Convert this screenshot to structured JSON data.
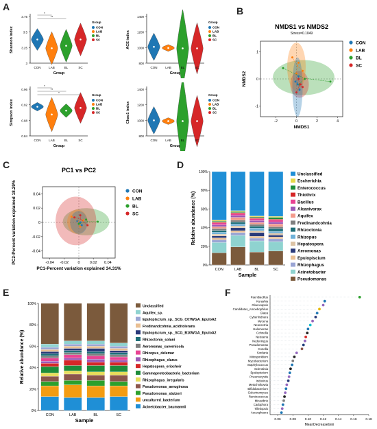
{
  "panel_labels": {
    "A": "A",
    "B": "B",
    "C": "C",
    "D": "D",
    "E": "E",
    "F": "F"
  },
  "colors": {
    "CON": "#1f77b4",
    "LAB": "#ff7f0e",
    "BL": "#2ca02c",
    "SC": "#d62728"
  },
  "chart_data": [
    {
      "id": "A1",
      "type": "violin",
      "ylabel": "Shannon index",
      "xlabel": "Group",
      "categories": [
        "CON",
        "LAB",
        "BL",
        "SC"
      ],
      "yticks": [
        "3",
        "3.25",
        "3.5",
        "3.75"
      ],
      "ylim": [
        3.0,
        3.75
      ],
      "means": [
        3.38,
        3.24,
        3.28,
        3.38
      ],
      "spread": [
        0.08,
        0.12,
        0.12,
        0.12
      ],
      "significance": [
        "*",
        "**"
      ],
      "legend_title": "Group",
      "legend": [
        "CON",
        "LAB",
        "BL",
        "SC"
      ]
    },
    {
      "id": "A2",
      "type": "violin",
      "ylabel": "ACE index",
      "xlabel": "Group",
      "categories": [
        "CON",
        "LAB",
        "BL",
        "SC"
      ],
      "yticks": [
        "800",
        "1000",
        "1200",
        "1400"
      ],
      "ylim": [
        800,
        1400
      ],
      "means": [
        1010,
        995,
        990,
        990
      ],
      "spread": [
        80,
        20,
        230,
        150
      ],
      "legend_title": "Group",
      "legend": [
        "CON",
        "LAB",
        "BL",
        "SC"
      ]
    },
    {
      "id": "A3",
      "type": "violin",
      "ylabel": "Simpson index",
      "xlabel": "Group",
      "categories": [
        "CON",
        "LAB",
        "BL",
        "SC"
      ],
      "yticks": [
        "0.84",
        "0.88",
        "0.92",
        "0.96"
      ],
      "ylim": [
        0.84,
        0.96
      ],
      "means": [
        0.915,
        0.895,
        0.905,
        0.912
      ],
      "spread": [
        0.005,
        0.02,
        0.008,
        0.018
      ],
      "significance": [
        "*",
        "**",
        "*"
      ],
      "legend_title": "Group",
      "legend": [
        "CON",
        "LAB",
        "BL",
        "SC"
      ]
    },
    {
      "id": "A4",
      "type": "violin",
      "ylabel": "Chao1 index",
      "xlabel": "Group",
      "categories": [
        "CON",
        "LAB",
        "BL",
        "SC"
      ],
      "yticks": [
        "800",
        "1000",
        "1200",
        "1400"
      ],
      "ylim": [
        800,
        1400
      ],
      "means": [
        1000,
        990,
        990,
        990
      ],
      "spread": [
        80,
        20,
        260,
        150
      ],
      "legend_title": "Group",
      "legend": [
        "CON",
        "LAB",
        "BL",
        "SC"
      ]
    },
    {
      "id": "B",
      "type": "scatter",
      "title": "NMDS1 vs NMDS2",
      "subtitle": "Stress=0.1049",
      "xlabel": "NMDS1",
      "ylabel": "NMDS2",
      "xticks": [
        "-2",
        "0",
        "2",
        "4"
      ],
      "yticks": [
        "-1",
        "0",
        "1"
      ],
      "xlim": [
        -3.5,
        4.5
      ],
      "ylim": [
        -1.4,
        1.4
      ],
      "legend": [
        "CON",
        "LAB",
        "BL",
        "SC"
      ],
      "series": [
        {
          "name": "CON",
          "x": [
            0.1,
            0.3,
            0.2,
            -0.1
          ],
          "y": [
            -0.2,
            -0.4,
            0.1,
            -0.1
          ],
          "ellipse": {
            "cx": 0.1,
            "cy": -0.3,
            "rx": 0.5,
            "ry": 1.1
          }
        },
        {
          "name": "LAB",
          "x": [
            -0.4,
            0.2,
            0.6,
            0.0
          ],
          "y": [
            0.8,
            0.6,
            0.3,
            0.2
          ],
          "ellipse": {
            "cx": 0.0,
            "cy": 0.45,
            "rx": 0.9,
            "ry": 0.9
          }
        },
        {
          "name": "BL",
          "x": [
            -1.3,
            0.8,
            3.3,
            0.3
          ],
          "y": [
            0.4,
            0.0,
            -0.1,
            -0.2
          ],
          "ellipse": {
            "cx": 0.7,
            "cy": 0.05,
            "rx": 3.0,
            "ry": 0.65
          }
        },
        {
          "name": "SC",
          "x": [
            0.4,
            0.0,
            0.6,
            0.2
          ],
          "y": [
            -0.2,
            -0.5,
            -0.3,
            0.0
          ],
          "ellipse": {
            "cx": 0.3,
            "cy": -0.2,
            "rx": 0.9,
            "ry": 0.5
          }
        }
      ]
    },
    {
      "id": "C",
      "type": "scatter",
      "title": "PC1 vs PC2",
      "xlabel": "PC1-Percent variation explained 34.31%",
      "ylabel": "PC2-Percent variation explained 18.29%",
      "xticks": [
        "-0.04",
        "-0.02",
        "0",
        "0.02",
        "0.04"
      ],
      "yticks": [
        "-0.04",
        "-0.02",
        "0",
        "0.02",
        "0.04"
      ],
      "xlim": [
        -0.05,
        0.05
      ],
      "ylim": [
        -0.05,
        0.05
      ],
      "legend": [
        "CON",
        "LAB",
        "BL",
        "SC"
      ],
      "series": [
        {
          "name": "CON",
          "x": [
            -0.002,
            0.004,
            0.002
          ],
          "y": [
            0.002,
            -0.004,
            0.0
          ],
          "ellipse": {
            "cx": 0.0,
            "cy": 0.0,
            "rx": 0.012,
            "ry": 0.016
          }
        },
        {
          "name": "LAB",
          "x": [
            -0.01,
            0.002,
            0.006
          ],
          "y": [
            0.008,
            -0.006,
            0.003
          ],
          "ellipse": {
            "cx": -0.002,
            "cy": 0.001,
            "rx": 0.014,
            "ry": 0.017
          }
        },
        {
          "name": "BL",
          "x": [
            0.026,
            0.01,
            0.0
          ],
          "y": [
            0.001,
            0.004,
            -0.002
          ],
          "ellipse": {
            "cx": 0.01,
            "cy": 0.001,
            "rx": 0.032,
            "ry": 0.019
          }
        },
        {
          "name": "SC",
          "x": [
            0.012,
            -0.006,
            0.002
          ],
          "y": [
            -0.004,
            0.007,
            0.01
          ],
          "ellipse": {
            "cx": -0.004,
            "cy": 0.002,
            "rx": 0.028,
            "ry": 0.034
          }
        }
      ]
    },
    {
      "id": "D",
      "type": "stacked-bar",
      "xlabel": "Sample",
      "ylabel": "Relative abundance (%)",
      "categories": [
        "CON",
        "LAB",
        "BL",
        "SC"
      ],
      "yticks": [
        "0%",
        "20%",
        "40%",
        "60%",
        "80%",
        "100%"
      ],
      "series": [
        {
          "name": "Pseudomonas",
          "color": "#7b5a3c",
          "values": [
            13,
            19,
            14,
            15
          ]
        },
        {
          "name": "Acinetobacter",
          "color": "#8fd3d0",
          "values": [
            11,
            12,
            12,
            10
          ]
        },
        {
          "name": "Rhizophagus",
          "color": "#9aa5d4",
          "values": [
            3,
            3,
            3,
            3
          ]
        },
        {
          "name": "Epulopiscium",
          "color": "#e9bf93",
          "values": [
            2,
            2,
            2,
            2
          ]
        },
        {
          "name": "Aeromonas",
          "color": "#2a3a7a",
          "values": [
            2,
            3,
            4,
            2
          ]
        },
        {
          "name": "Hepatospora",
          "color": "#dcc3a5",
          "values": [
            2,
            2,
            2,
            2
          ]
        },
        {
          "name": "Rhizopus",
          "color": "#6fb1d8",
          "values": [
            2,
            2,
            3,
            2
          ]
        },
        {
          "name": "Rhizoctonia",
          "color": "#1f6f78",
          "values": [
            2,
            2,
            2,
            3
          ]
        },
        {
          "name": "Fredinandcohnia",
          "color": "#7f7f7f",
          "values": [
            2,
            2,
            2,
            2
          ]
        },
        {
          "name": "Aquifex",
          "color": "#f39a8b",
          "values": [
            2,
            3,
            2,
            3
          ]
        },
        {
          "name": "Alcanivorax",
          "color": "#9b59b6",
          "values": [
            2,
            2,
            2,
            2
          ]
        },
        {
          "name": "Bacillus",
          "color": "#e84393",
          "values": [
            2,
            2,
            2,
            2
          ]
        },
        {
          "name": "Thiothrix",
          "color": "#d62728",
          "values": [
            1,
            1,
            1,
            1
          ]
        },
        {
          "name": "Enterococcus",
          "color": "#1e8c3a",
          "values": [
            1,
            1,
            1,
            2
          ]
        },
        {
          "name": "Escherichia",
          "color": "#e6d84a",
          "values": [
            1,
            1,
            1,
            1
          ]
        },
        {
          "name": "Unclassified",
          "color": "#1f8fd6",
          "values": [
            52,
            41,
            48,
            48
          ]
        }
      ],
      "legend": [
        "Unclassified",
        "Escherichia",
        "Enterococcus",
        "Thiothrix",
        "Bacillus",
        "Alcanivorax",
        "Aquifex",
        "Fredinandcohnia",
        "Rhizoctonia",
        "Rhizopus",
        "Hepatospora",
        "Aeromonas",
        "Epulopiscium",
        "Rhizophagus",
        "Acinetobacter",
        "Pseudomonas"
      ]
    },
    {
      "id": "E",
      "type": "stacked-bar",
      "xlabel": "Sample",
      "ylabel": "Relative abundance (%)",
      "categories": [
        "CON",
        "LAB",
        "BL",
        "SC"
      ],
      "yticks": [
        "0%",
        "20%",
        "40%",
        "60%",
        "80%",
        "100%"
      ],
      "series": [
        {
          "name": "Acinetobacter_baumannii",
          "color": "#1f8fd6",
          "values": [
            13,
            12,
            12,
            13
          ]
        },
        {
          "name": "uncultured_bacterium",
          "color": "#f39c12",
          "values": [
            10,
            12,
            11,
            10
          ]
        },
        {
          "name": "Pseudomonas_stutzeri",
          "color": "#2ca02c",
          "values": [
            4,
            4,
            5,
            4
          ]
        },
        {
          "name": "Pseudomonas_aeruginosa",
          "color": "#8c564b",
          "values": [
            5,
            6,
            5,
            6
          ]
        },
        {
          "name": "Rhizophagus_irregularis",
          "color": "#e8dd5a",
          "values": [
            3,
            3,
            3,
            3
          ]
        },
        {
          "name": "Gammaproteobacteria_bacterium",
          "color": "#1e8c3a",
          "values": [
            6,
            5,
            6,
            6
          ]
        },
        {
          "name": "Hepatospora_eriocheir",
          "color": "#d62728",
          "values": [
            3,
            5,
            3,
            3
          ]
        },
        {
          "name": "Rhizophagus_clarus",
          "color": "#9b59b6",
          "values": [
            2,
            2,
            3,
            2
          ]
        },
        {
          "name": "Rhizopus_delemar",
          "color": "#e84393",
          "values": [
            3,
            3,
            3,
            3
          ]
        },
        {
          "name": "Aeromonas_cavernicola",
          "color": "#7f7f7f",
          "values": [
            2,
            2,
            2,
            2
          ]
        },
        {
          "name": "Rhizoctonia_solani",
          "color": "#1f6f78",
          "values": [
            2,
            2,
            2,
            2
          ]
        },
        {
          "name": "Epulopiscium_sp._SCG_B10WGA_EpuloA2",
          "color": "#2a3a7a",
          "values": [
            2,
            2,
            3,
            2
          ]
        },
        {
          "name": "Fredinandcohnia_aciditolerans",
          "color": "#e9bf93",
          "values": [
            2,
            2,
            2,
            2
          ]
        },
        {
          "name": "Epulopiscium_sp._SCG_C07WGA_EpuloA2",
          "color": "#9aa5d4",
          "values": [
            2,
            2,
            2,
            2
          ]
        },
        {
          "name": "Aquifex_sp.",
          "color": "#8fd3d0",
          "values": [
            3,
            3,
            3,
            3
          ]
        },
        {
          "name": "Unclassified",
          "color": "#7b5a3c",
          "values": [
            38,
            35,
            35,
            37
          ]
        }
      ],
      "legend": [
        "Unclassified",
        "Aquifex_sp.",
        "Epulopiscium_sp._SCG_C07WGA_EpuloA2",
        "Fredinandcohnia_aciditolerans",
        "Epulopiscium_sp._SCG_B10WGA_EpuloA2",
        "Rhizoctonia_solani",
        "Aeromonas_cavernicola",
        "Rhizopus_delemar",
        "Rhizophagus_clarus",
        "Hepatospora_eriocheir",
        "Gammaproteobacteria_bacterium",
        "Rhizophagus_irregularis",
        "Pseudomonas_aeruginosa",
        "Pseudomonas_stutzeri",
        "uncultured_bacterium",
        "Acinetobacter_baumannii"
      ]
    },
    {
      "id": "F",
      "type": "dot",
      "xlabel": "MeanDecreaseGini",
      "xticks": [
        "0.06",
        "0.08",
        "0.10",
        "0.12",
        "0.14",
        "0.16",
        "0.18"
      ],
      "xlim": [
        0.05,
        0.18
      ],
      "categories": [
        "Paenibacillus",
        "Kurashia",
        "Gloeocapsis",
        "Candidatus_Amoebophilus",
        "Glaea",
        "Cyberlindnera",
        "Mycena",
        "Neonectria",
        "Halomonas",
        "Cohnella",
        "Neisseria",
        "Nedeningus",
        "Pseudomonas",
        "Conella",
        "Sordaria",
        "Mitosporidium",
        "Mycobacterium",
        "Staphylococcus",
        "Sclerotinia",
        "Epulopiscium",
        "Pneumocystis",
        "Iridovirus",
        "Metschnikowia",
        "Bifidobacterium",
        "Golovinomyces",
        "Ruminococcus",
        "Micavibrio",
        "Cadophora",
        "Tilletiopsis",
        "Ascosphaera"
      ],
      "values": [
        0.168,
        0.122,
        0.12,
        0.115,
        0.112,
        0.11,
        0.106,
        0.103,
        0.1,
        0.099,
        0.097,
        0.096,
        0.094,
        0.092,
        0.085,
        0.082,
        0.08,
        0.079,
        0.077,
        0.076,
        0.075,
        0.074,
        0.072,
        0.071,
        0.07,
        0.069,
        0.068,
        0.067,
        0.066,
        0.065
      ],
      "colors": [
        "#2ca02c",
        "#1f77b4",
        "#9467bd",
        "#e6b800",
        "#1f77b4",
        "#2a3a7a",
        "#9467bd",
        "#17becf",
        "#1f77b4",
        "#222222",
        "#d62728",
        "#9467bd",
        "#1f3d7a",
        "#8c564b",
        "#9467bd",
        "#222222",
        "#7f7f7f",
        "#1f77b4",
        "#222222",
        "#1f77b4",
        "#9467bd",
        "#2a3a7a",
        "#9467bd",
        "#1f77b4",
        "#9467bd",
        "#222222",
        "#7f7f7f",
        "#1f77b4",
        "#9467bd",
        "#1f77b4"
      ]
    }
  ]
}
